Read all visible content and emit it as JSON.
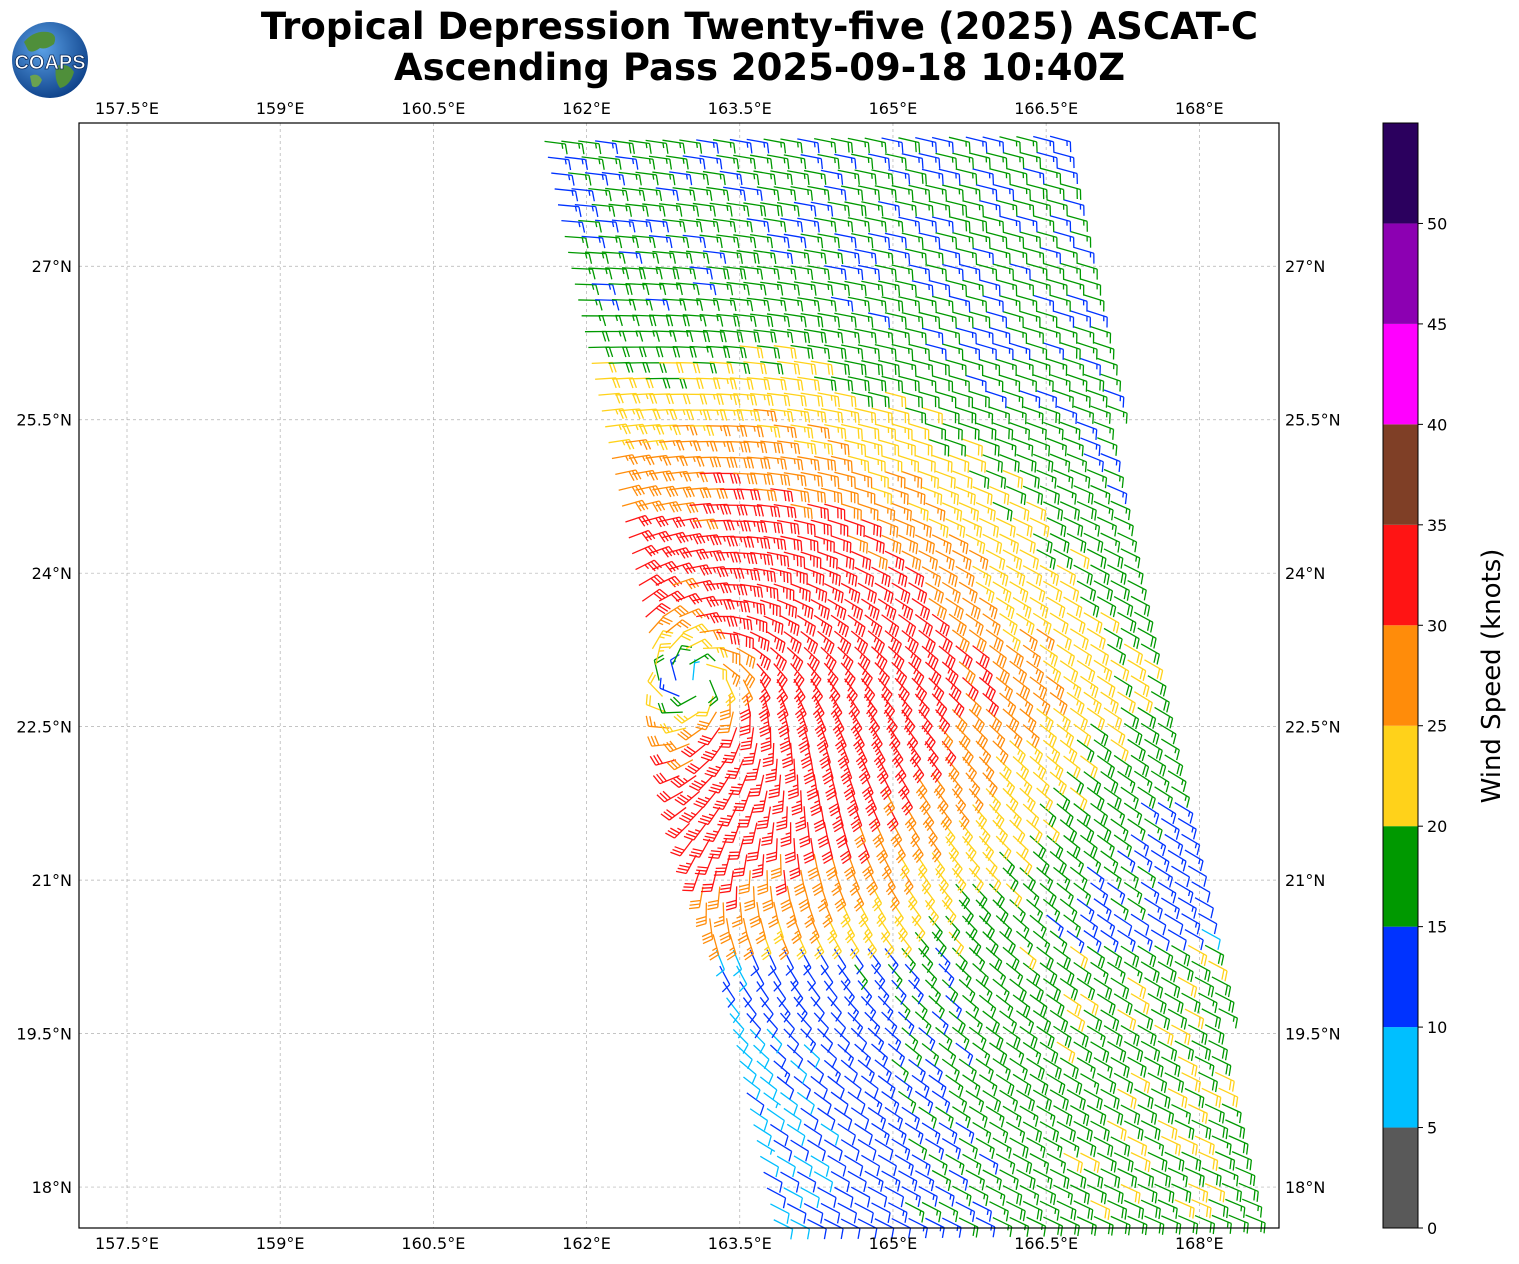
{
  "title": {
    "line1": "Tropical Depression Twenty-five (2025) ASCAT-C",
    "line2": "Ascending Pass 2025-09-18 10:40Z"
  },
  "logo": {
    "text": "COAPS",
    "icon": "globe-logo-icon",
    "colors": {
      "ocean": "#1560b5",
      "land": "#4f8f3a",
      "text": "#ffffff"
    }
  },
  "map": {
    "lon_ticks": [
      157.5,
      159,
      160.5,
      162,
      163.5,
      165,
      166.5,
      168
    ],
    "lon_tick_labels": [
      "157.5°E",
      "159°E",
      "160.5°E",
      "162°E",
      "163.5°E",
      "165°E",
      "166.5°E",
      "168°E"
    ],
    "lat_ticks": [
      18,
      19.5,
      21,
      22.5,
      24,
      25.5,
      27
    ],
    "lat_tick_labels": [
      "18°N",
      "19.5°N",
      "21°N",
      "22.5°N",
      "24°N",
      "25.5°N",
      "27°N"
    ],
    "lon_range": [
      157.03,
      168.78
    ],
    "lat_range": [
      17.6,
      28.4
    ],
    "grid": true,
    "grid_style": "dashed",
    "barb_units": "knots",
    "storm_center": {
      "lon": 163.05,
      "lat": 22.95
    },
    "swath": {
      "north": 28.4,
      "south": 17.6,
      "west_edge_north": 161.5,
      "west_edge_south": 163.8,
      "east_edge_north": 166.6,
      "east_edge_south": 168.6
    }
  },
  "colorbar": {
    "label": "Wind Speed (knots)",
    "ticks": [
      0,
      5,
      10,
      15,
      20,
      25,
      30,
      35,
      40,
      45,
      50
    ],
    "tick_labels": [
      "0",
      "5",
      "10",
      "15",
      "20",
      "25",
      "30",
      "35",
      "40",
      "45",
      "50"
    ],
    "bins": [
      {
        "from": 0,
        "to": 5,
        "color": "#595959"
      },
      {
        "from": 5,
        "to": 10,
        "color": "#00bfff"
      },
      {
        "from": 10,
        "to": 15,
        "color": "#0033ff"
      },
      {
        "from": 15,
        "to": 20,
        "color": "#009900"
      },
      {
        "from": 20,
        "to": 25,
        "color": "#ffd21a"
      },
      {
        "from": 25,
        "to": 30,
        "color": "#ff8c0a"
      },
      {
        "from": 30,
        "to": 35,
        "color": "#ff1414"
      },
      {
        "from": 35,
        "to": 40,
        "color": "#7f3f26"
      },
      {
        "from": 40,
        "to": 45,
        "color": "#ff00ff"
      },
      {
        "from": 45,
        "to": 50,
        "color": "#8c00b2"
      },
      {
        "from": 50,
        "to": 55,
        "color": "#2b005e"
      }
    ]
  }
}
